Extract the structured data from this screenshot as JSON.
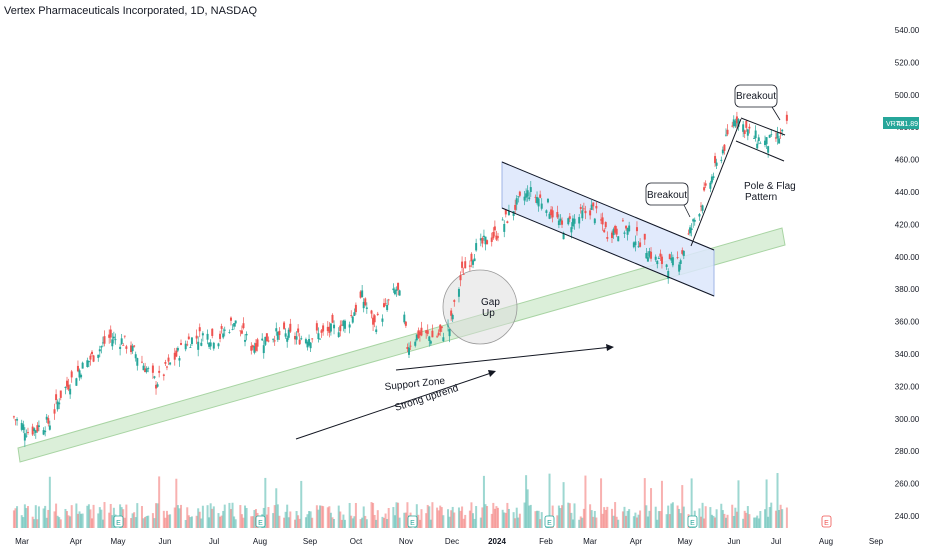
{
  "title": "Vertex Pharmaceuticals Incorporated, 1D, NASDAQ",
  "colors": {
    "up": "#26a69a",
    "down": "#ef5350",
    "channel_fill": "#dce6fb",
    "support_fill": "#d5ecd2",
    "badge": "#26a69a"
  },
  "price_badge": {
    "ticker": "VRTX",
    "price": "481.89"
  },
  "annotations": {
    "breakout_1": "Breakout",
    "breakout_2": "Breakout",
    "pole_flag_1": "Pole & Flag",
    "pole_flag_2": "Pattern",
    "gap_1": "Gap",
    "gap_2": "Up",
    "support_zone": "Support Zone",
    "strong_uptrend": "Strong uptrend"
  },
  "earnings_marker": "E",
  "chart_data": {
    "type": "candlestick",
    "title": "Vertex Pharmaceuticals Incorporated, 1D, NASDAQ",
    "x_tick_labels": [
      "Mar",
      "Apr",
      "May",
      "Jun",
      "Jul",
      "Aug",
      "Sep",
      "Oct",
      "Nov",
      "Dec",
      "2024",
      "Feb",
      "Mar",
      "Apr",
      "May",
      "Jun",
      "Jul",
      "Aug",
      "Sep"
    ],
    "y_tick_labels": [
      "540.00",
      "520.00",
      "500.00",
      "480.00",
      "460.00",
      "440.00",
      "420.00",
      "400.00",
      "380.00",
      "360.00",
      "340.00",
      "320.00",
      "300.00",
      "280.00",
      "260.00",
      "240.00"
    ],
    "ylim": [
      236,
      544
    ],
    "last_price": 481.89,
    "close_path": [
      {
        "date": "2023-03-01",
        "close": 301
      },
      {
        "date": "2023-03-10",
        "close": 292
      },
      {
        "date": "2023-03-17",
        "close": 295
      },
      {
        "date": "2023-03-24",
        "close": 298
      },
      {
        "date": "2023-03-31",
        "close": 315
      },
      {
        "date": "2023-04-10",
        "close": 328
      },
      {
        "date": "2023-04-20",
        "close": 338
      },
      {
        "date": "2023-05-01",
        "close": 350
      },
      {
        "date": "2023-05-10",
        "close": 348
      },
      {
        "date": "2023-05-20",
        "close": 338
      },
      {
        "date": "2023-05-31",
        "close": 322
      },
      {
        "date": "2023-06-10",
        "close": 335
      },
      {
        "date": "2023-06-20",
        "close": 348
      },
      {
        "date": "2023-07-01",
        "close": 352
      },
      {
        "date": "2023-07-10",
        "close": 350
      },
      {
        "date": "2023-07-20",
        "close": 360
      },
      {
        "date": "2023-07-31",
        "close": 345
      },
      {
        "date": "2023-08-15",
        "close": 352
      },
      {
        "date": "2023-09-01",
        "close": 350
      },
      {
        "date": "2023-09-15",
        "close": 352
      },
      {
        "date": "2023-10-01",
        "close": 360
      },
      {
        "date": "2023-10-10",
        "close": 375
      },
      {
        "date": "2023-10-18",
        "close": 358
      },
      {
        "date": "2023-10-25",
        "close": 368
      },
      {
        "date": "2023-11-01",
        "close": 380
      },
      {
        "date": "2023-11-05",
        "close": 370
      },
      {
        "date": "2023-11-08",
        "close": 345
      },
      {
        "date": "2023-11-15",
        "close": 352
      },
      {
        "date": "2023-11-25",
        "close": 350
      },
      {
        "date": "2023-12-05",
        "close": 356
      },
      {
        "date": "2023-12-13",
        "close": 390
      },
      {
        "date": "2023-12-22",
        "close": 405
      },
      {
        "date": "2024-01-05",
        "close": 415
      },
      {
        "date": "2024-01-15",
        "close": 430
      },
      {
        "date": "2024-01-25",
        "close": 440
      },
      {
        "date": "2024-02-05",
        "close": 433
      },
      {
        "date": "2024-02-15",
        "close": 418
      },
      {
        "date": "2024-02-25",
        "close": 424
      },
      {
        "date": "2024-03-05",
        "close": 430
      },
      {
        "date": "2024-03-15",
        "close": 415
      },
      {
        "date": "2024-03-25",
        "close": 418
      },
      {
        "date": "2024-04-05",
        "close": 410
      },
      {
        "date": "2024-04-15",
        "close": 398
      },
      {
        "date": "2024-04-25",
        "close": 395
      },
      {
        "date": "2024-05-01",
        "close": 400
      },
      {
        "date": "2024-05-08",
        "close": 418
      },
      {
        "date": "2024-05-15",
        "close": 435
      },
      {
        "date": "2024-05-25",
        "close": 458
      },
      {
        "date": "2024-06-05",
        "close": 487
      },
      {
        "date": "2024-06-15",
        "close": 475
      },
      {
        "date": "2024-06-25",
        "close": 470
      },
      {
        "date": "2024-07-05",
        "close": 475
      },
      {
        "date": "2024-07-09",
        "close": 482
      }
    ]
  }
}
